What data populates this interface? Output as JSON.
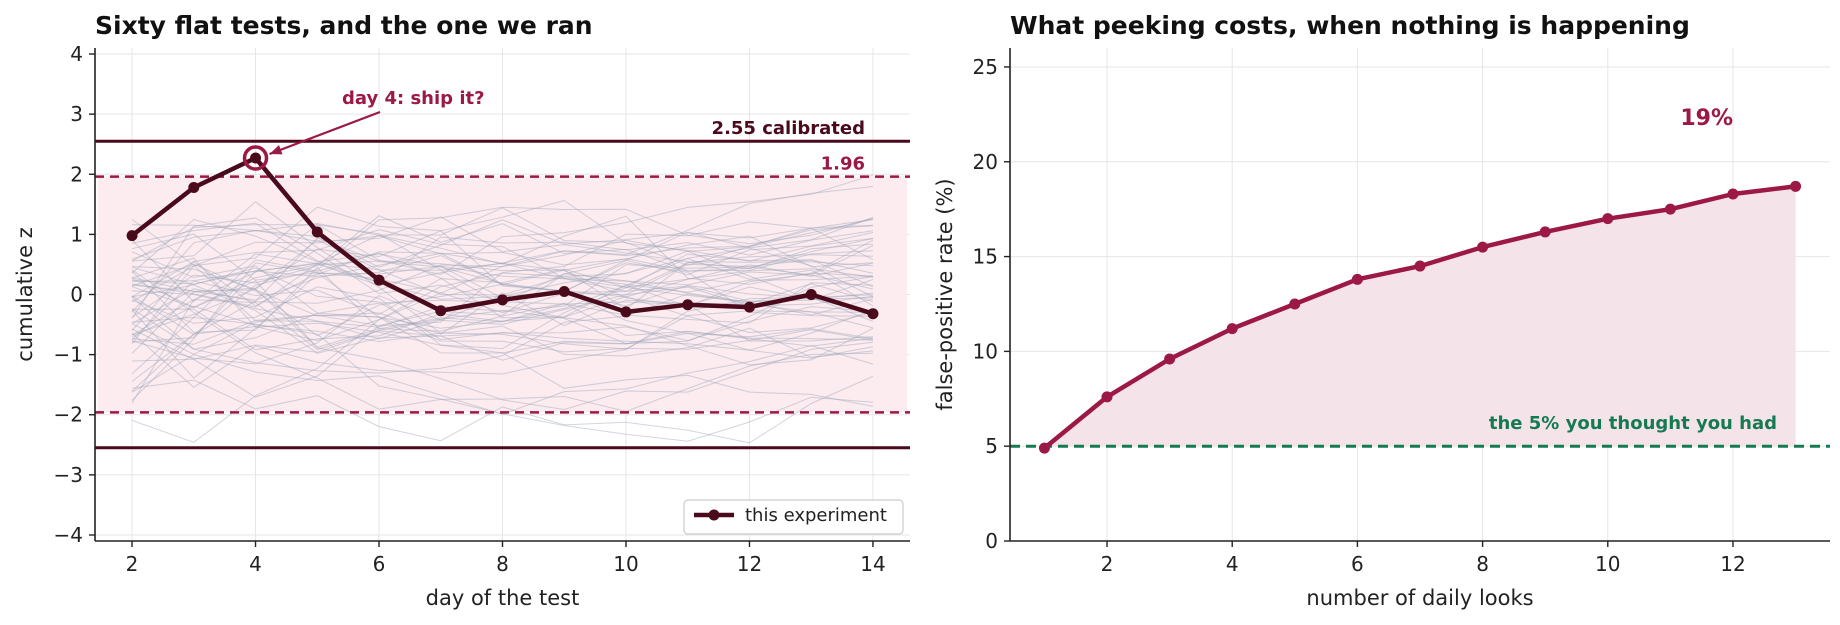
{
  "chart_data": [
    {
      "type": "line",
      "title": "Sixty flat tests, and the one we ran",
      "xlabel": "day of the test",
      "ylabel": "cumulative z",
      "xlim": [
        1.4,
        14.6
      ],
      "ylim": [
        -4.1,
        4.1
      ],
      "xticks": [
        2,
        4,
        6,
        8,
        10,
        12,
        14
      ],
      "yticks": [
        -4,
        -3,
        -2,
        -1,
        0,
        1,
        2,
        3,
        4
      ],
      "grid": true,
      "legend_position": "bottom-right",
      "series": [
        {
          "name": "this experiment",
          "x": [
            2,
            3,
            4,
            5,
            6,
            7,
            8,
            9,
            10,
            11,
            12,
            13,
            14
          ],
          "y": [
            0.98,
            1.78,
            2.27,
            1.04,
            0.24,
            -0.27,
            -0.09,
            0.05,
            -0.29,
            -0.17,
            -0.21,
            0.0,
            -0.32
          ]
        }
      ],
      "background_paths": {
        "count": 60,
        "x": [
          2,
          3,
          4,
          5,
          6,
          7,
          8,
          9,
          10,
          11,
          12,
          13,
          14
        ],
        "description_range": [
          -2.6,
          3.2
        ]
      },
      "reference_lines": [
        {
          "y": 2.55,
          "style": "solid",
          "label": "2.55 calibrated"
        },
        {
          "y": -2.55,
          "style": "solid",
          "label": ""
        },
        {
          "y": 1.96,
          "style": "dashed",
          "label": "1.96"
        },
        {
          "y": -1.96,
          "style": "dashed",
          "label": ""
        }
      ],
      "shaded_band": [
        -1.96,
        1.96
      ],
      "annotations": [
        {
          "text": "day 4: ship it?",
          "x": 4,
          "y": 2.27
        }
      ],
      "colors": {
        "main": "#4a0a1c",
        "accent": "#9c1845",
        "band": "#fcebef",
        "paths": "#9aa3b8"
      }
    },
    {
      "type": "area",
      "title": "What peeking costs, when nothing is happening",
      "xlabel": "number of daily looks",
      "ylabel": "false-positive rate (%)",
      "xlim": [
        0.45,
        13.55
      ],
      "ylim": [
        0,
        26
      ],
      "xticks": [
        2,
        4,
        6,
        8,
        10,
        12
      ],
      "yticks": [
        0,
        5,
        10,
        15,
        20,
        25
      ],
      "grid": true,
      "series": [
        {
          "name": "",
          "x": [
            1,
            2,
            3,
            4,
            5,
            6,
            7,
            8,
            9,
            10,
            11,
            12,
            13
          ],
          "y": [
            4.9,
            7.6,
            9.6,
            11.2,
            12.5,
            13.8,
            14.5,
            15.5,
            16.3,
            17.0,
            17.5,
            18.3,
            18.7
          ]
        }
      ],
      "reference_lines": [
        {
          "y": 5,
          "style": "dashed",
          "label": "the 5% you thought you had"
        }
      ],
      "annotations": [
        {
          "text": "19%"
        }
      ],
      "colors": {
        "line": "#9c1845",
        "fill": "#f4e3e8",
        "reference": "#147a52"
      }
    }
  ]
}
